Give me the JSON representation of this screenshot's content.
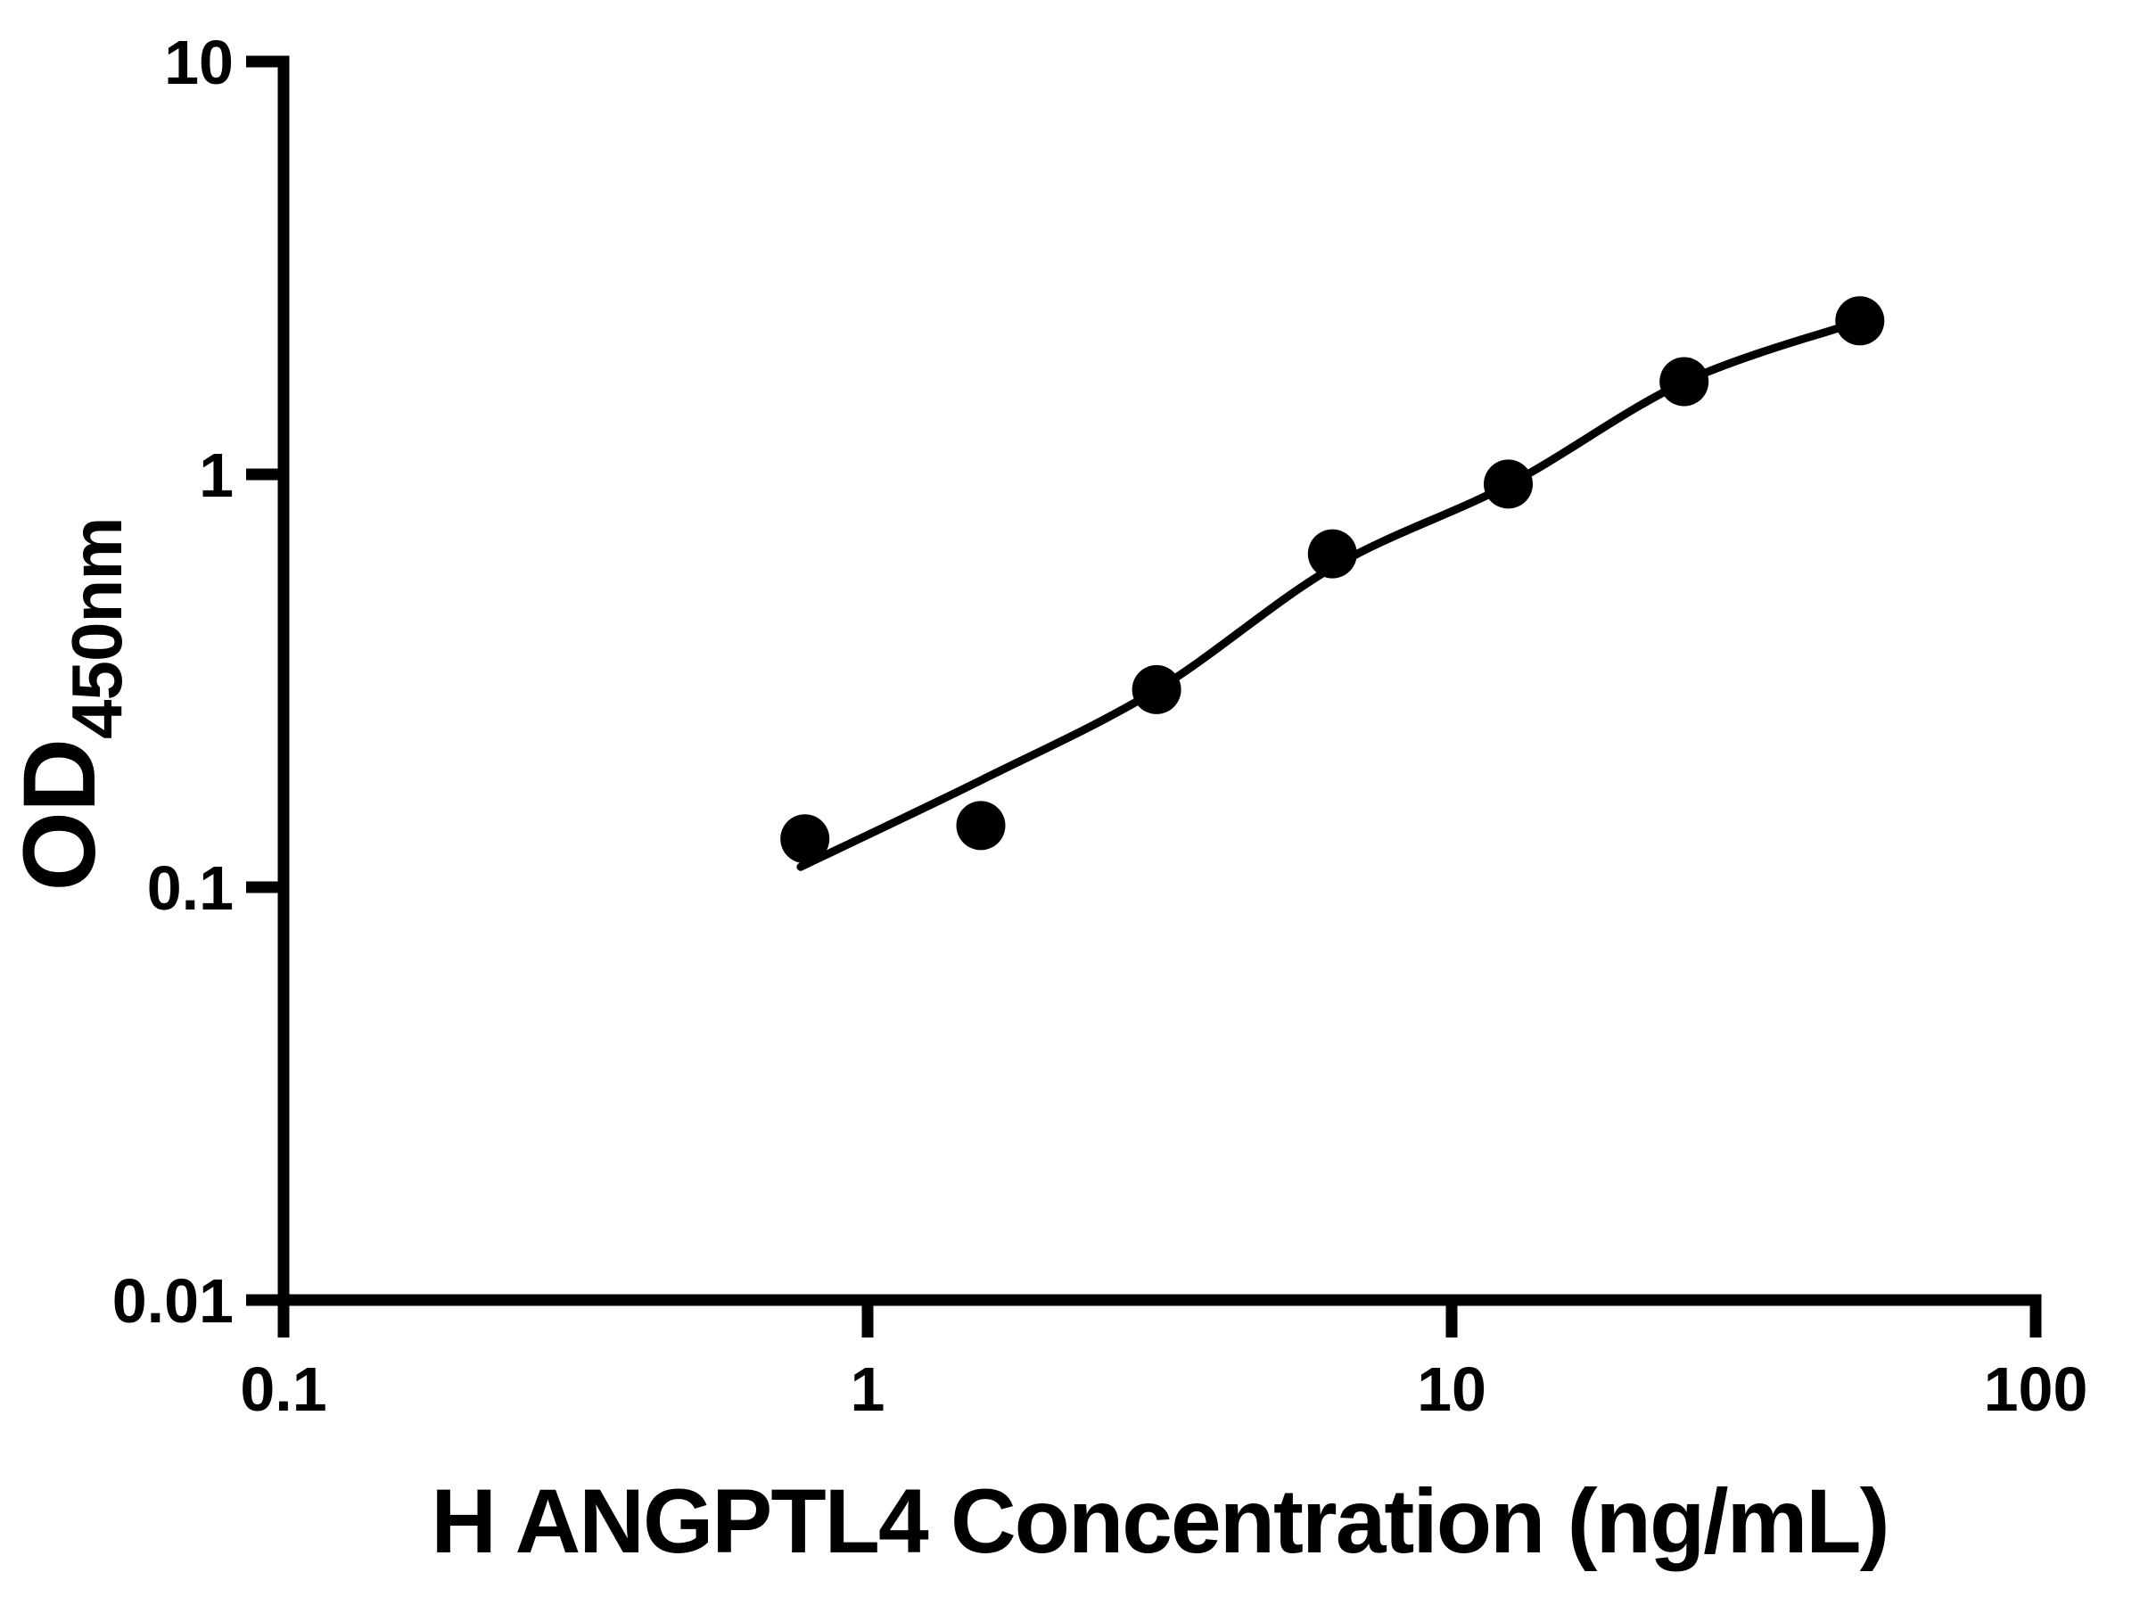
{
  "chart_data": {
    "type": "scatter",
    "title": "",
    "xlabel": "H ANGPTL4 Concentration (ng/mL)",
    "ylabel": "OD",
    "ylabel_sub": "450nm",
    "xscale": "log",
    "yscale": "log",
    "xlim": [
      0.1,
      100
    ],
    "ylim": [
      0.01,
      10
    ],
    "x_ticks": [
      0.1,
      1,
      10,
      100
    ],
    "x_tick_labels": [
      "0.1",
      "1",
      "10",
      "100"
    ],
    "y_ticks": [
      10,
      1,
      0.1,
      0.01
    ],
    "y_tick_labels": [
      "10",
      "1",
      "0.1",
      "0.01"
    ],
    "grid": false,
    "legend": null,
    "background_color": "#ffffff",
    "marker_color": "#000000",
    "line_color": "#000000",
    "axis_color": "#000000",
    "points": [
      {
        "x": 0.781,
        "y": 0.131
      },
      {
        "x": 1.563,
        "y": 0.141
      },
      {
        "x": 3.125,
        "y": 0.301
      },
      {
        "x": 6.25,
        "y": 0.642
      },
      {
        "x": 12.5,
        "y": 0.947
      },
      {
        "x": 25,
        "y": 1.677
      },
      {
        "x": 50,
        "y": 2.355
      }
    ],
    "fit_curve": [
      {
        "x": 0.768,
        "y": 0.112
      },
      {
        "x": 1.569,
        "y": 0.182
      },
      {
        "x": 3.13,
        "y": 0.301
      },
      {
        "x": 6.26,
        "y": 0.596
      },
      {
        "x": 12.57,
        "y": 0.947
      },
      {
        "x": 25.1,
        "y": 1.677
      },
      {
        "x": 50.4,
        "y": 2.355
      }
    ]
  }
}
